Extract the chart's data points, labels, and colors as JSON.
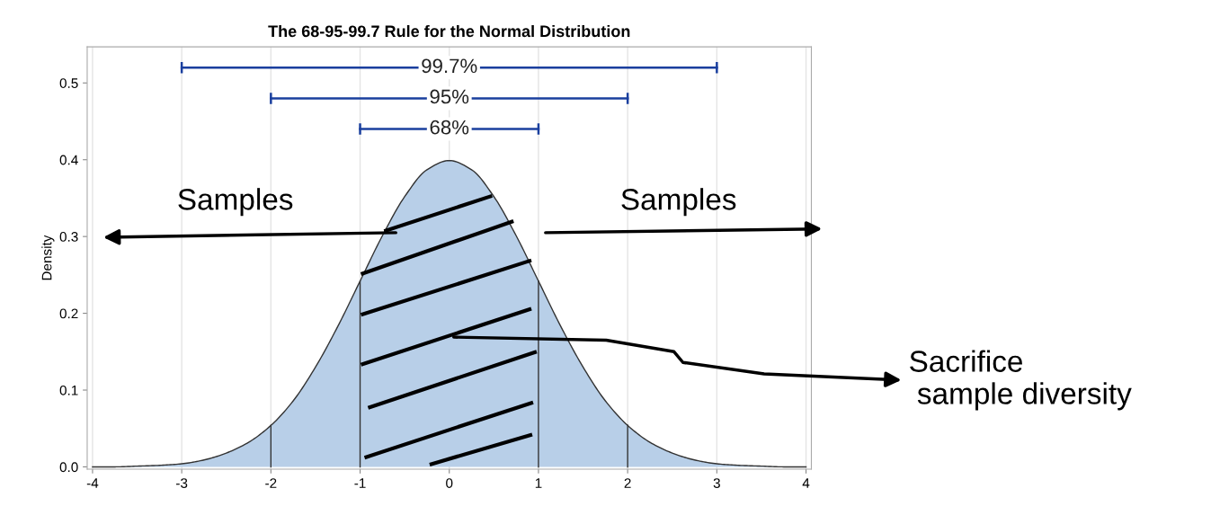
{
  "chart_data": {
    "type": "area",
    "title": "The 68-95-99.7 Rule for the Normal Distribution",
    "ylabel": "Density",
    "x": [
      -4,
      -3.75,
      -3.5,
      -3.25,
      -3,
      -2.75,
      -2.5,
      -2.25,
      -2,
      -1.75,
      -1.5,
      -1.25,
      -1,
      -0.75,
      -0.5,
      -0.25,
      0,
      0.25,
      0.5,
      0.75,
      1,
      1.25,
      1.5,
      1.75,
      2,
      2.25,
      2.5,
      2.75,
      3,
      3.25,
      3.5,
      3.75,
      4
    ],
    "series": [
      {
        "color": "#b8cfe8",
        "values": [
          0.0,
          0.0,
          0.001,
          0.002,
          0.004,
          0.009,
          0.018,
          0.032,
          0.054,
          0.086,
          0.13,
          0.183,
          0.242,
          0.301,
          0.352,
          0.387,
          0.399,
          0.387,
          0.352,
          0.301,
          0.242,
          0.183,
          0.13,
          0.086,
          0.054,
          0.032,
          0.018,
          0.009,
          0.004,
          0.002,
          0.001,
          0.0,
          0.0
        ]
      },
      {
        "type": "line",
        "name": "99.7%",
        "color": "#1a3f9e",
        "x": [
          -3,
          3
        ],
        "values": [
          0.52,
          0.52
        ]
      },
      {
        "type": "line",
        "name": "95%",
        "color": "#1a3f9e",
        "x": [
          -2,
          2
        ],
        "values": [
          0.48,
          0.48
        ]
      },
      {
        "type": "line",
        "name": "68%",
        "color": "#1a3f9e",
        "x": [
          -1,
          1
        ],
        "values": [
          0.44,
          0.44
        ]
      }
    ],
    "ref_lines": [
      {
        "axis": "x",
        "value": -2,
        "color": "#333333"
      },
      {
        "axis": "x",
        "value": -1,
        "color": "#333333"
      },
      {
        "axis": "x",
        "value": 1,
        "color": "#333333"
      },
      {
        "axis": "x",
        "value": 2,
        "color": "#333333"
      }
    ],
    "annotations": [
      "Samples",
      "Samples",
      "Sacrifice\n sample diversity"
    ],
    "xlim": [
      -4.06,
      4.06
    ],
    "xticks": [
      -4,
      -3,
      -2,
      -1,
      0,
      1,
      2,
      3,
      4
    ],
    "ylim": [
      -0.003,
      0.547
    ],
    "yticks": [
      {
        "value": 0,
        "label": "0.0"
      },
      0.1,
      0.2,
      0.3,
      0.4,
      0.5
    ],
    "grid": "x"
  }
}
